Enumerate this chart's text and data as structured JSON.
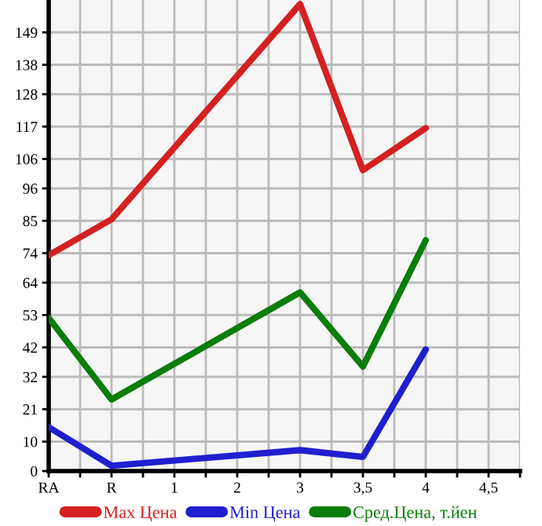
{
  "chart_data": {
    "type": "line",
    "categories": [
      "RA",
      "R",
      "1",
      "2",
      "3",
      "3,5",
      "4",
      "4,5"
    ],
    "series": [
      {
        "name": "Max Цена",
        "color": "#d42020",
        "values": [
          73.3,
          85.5,
          null,
          null,
          158.6,
          102.2,
          116.5,
          null
        ]
      },
      {
        "name": "Min Цена",
        "color": "#1f1fd0",
        "values": [
          14.9,
          1.8,
          null,
          null,
          7.1,
          4.8,
          41.3,
          null
        ]
      },
      {
        "name": "Сред.Цена, т.йен",
        "color": "#0a7d0a",
        "values": [
          52.0,
          24.3,
          null,
          null,
          60.7,
          35.5,
          78.4,
          null
        ]
      }
    ],
    "ylim": [
      0,
      160
    ],
    "yticks": [
      0,
      10,
      21,
      32,
      42,
      53,
      64,
      74,
      85,
      96,
      106,
      117,
      128,
      138,
      149
    ],
    "grid": true,
    "legend": "bottom",
    "marker": "none",
    "line_style": "solid"
  }
}
